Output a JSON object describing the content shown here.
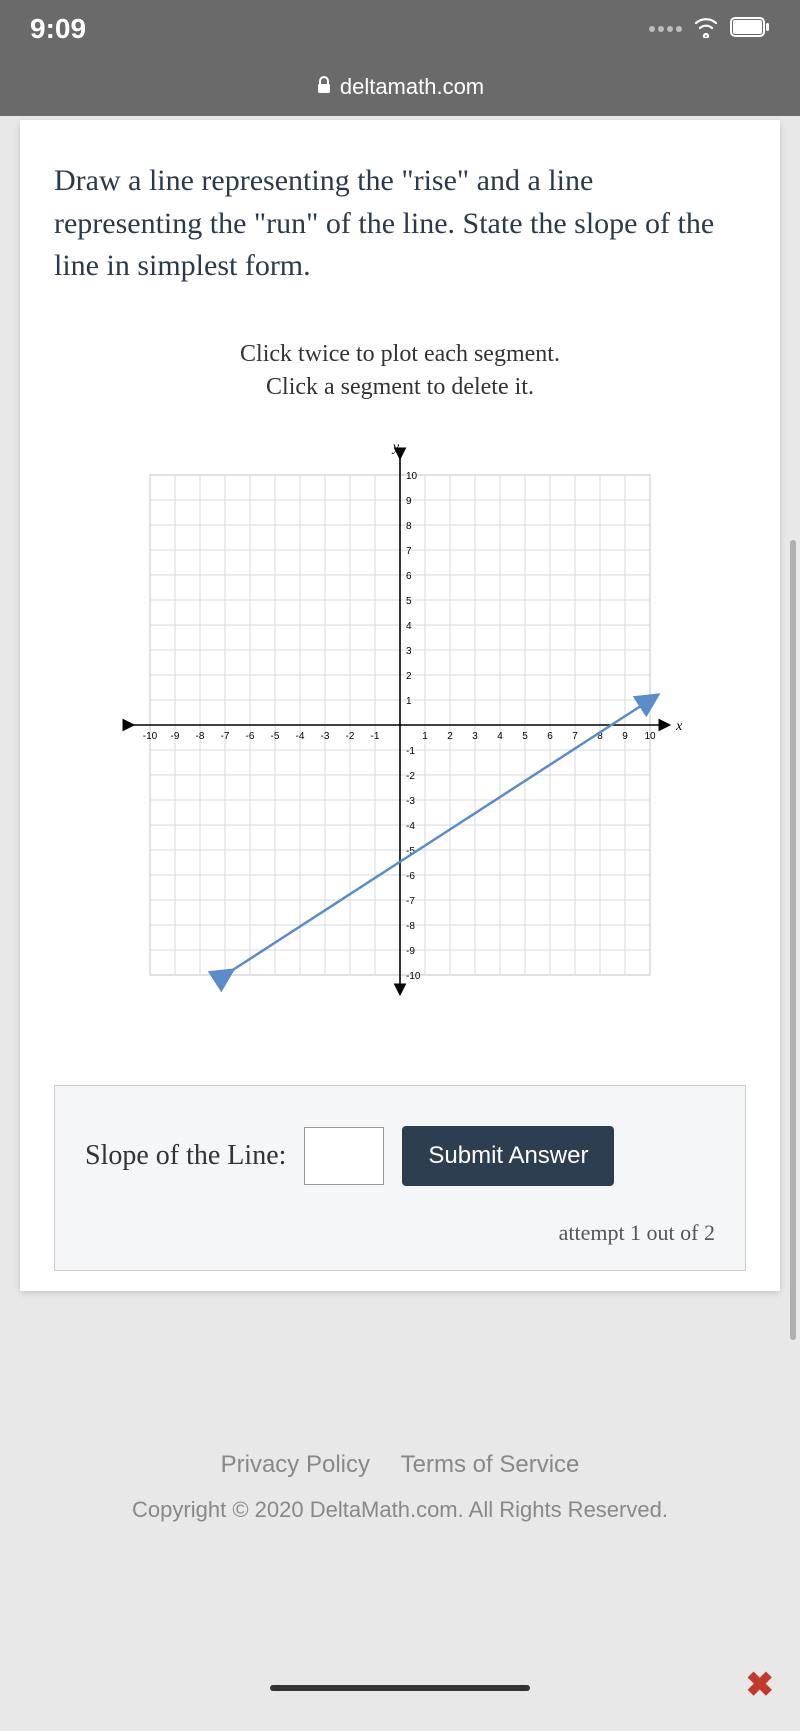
{
  "status": {
    "time": "9:09"
  },
  "browser": {
    "url": "deltamath.com"
  },
  "question": "Draw a line representing the \"rise\" and a line representing the \"run\" of the line. State the slope of the line in simplest form.",
  "instructions": {
    "line1": "Click twice to plot each segment.",
    "line2": "Click a segment to delete it."
  },
  "graph": {
    "type": "cartesian-grid",
    "xlim": [
      -10,
      10
    ],
    "ylim": [
      -10,
      10
    ],
    "tick_step": 1,
    "x_label": "x",
    "y_label": "y",
    "grid_color": "#d9d9d9",
    "axis_color": "#000000",
    "background": "#ffffff",
    "tick_font_size": 10,
    "line": {
      "points": [
        [
          -7,
          -10
        ],
        [
          10,
          1
        ]
      ],
      "color": "#5b8bc9",
      "width": 2.5,
      "arrowheads": true
    },
    "y_ticks_pos": [
      1,
      2,
      3,
      4,
      5,
      6,
      7,
      8,
      9,
      10
    ],
    "y_ticks_neg": [
      -1,
      -2,
      -3,
      -4,
      -5,
      -6,
      -7,
      -8,
      -9,
      -10
    ],
    "x_ticks_pos": [
      1,
      2,
      3,
      4,
      5,
      6,
      7,
      8,
      9,
      10
    ],
    "x_ticks_neg": [
      -10,
      -9,
      -8,
      -7,
      -6,
      -5,
      -4,
      -3,
      -2,
      -1
    ]
  },
  "answer": {
    "label": "Slope of the Line:",
    "value": "",
    "submit_label": "Submit Answer",
    "attempt_text": "attempt 1 out of 2"
  },
  "footer": {
    "privacy": "Privacy Policy",
    "terms": "Terms of Service",
    "copyright": "Copyright © 2020 DeltaMath.com. All Rights Reserved."
  }
}
